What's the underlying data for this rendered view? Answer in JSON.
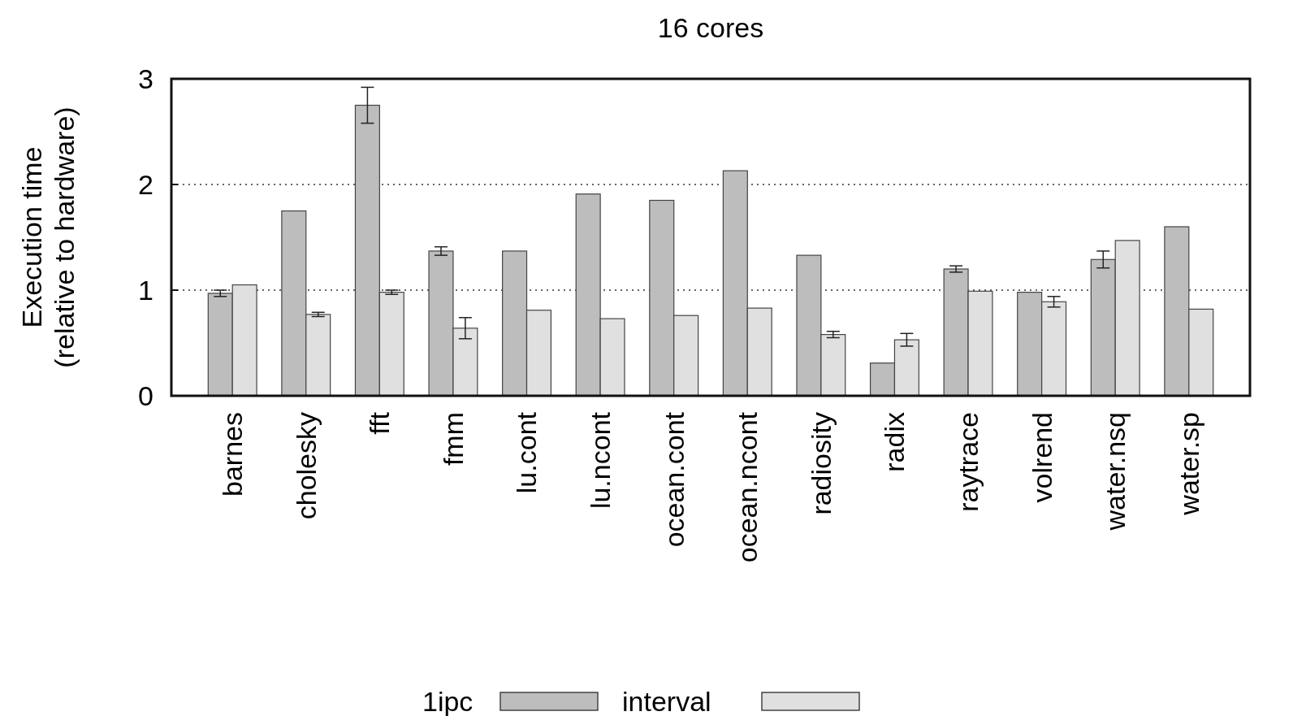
{
  "chart_data": {
    "type": "bar",
    "title": "16 cores",
    "ylabel": "Execution time\n(relative to hardware)",
    "categories": [
      "barnes",
      "cholesky",
      "fft",
      "fmm",
      "lu.cont",
      "lu.ncont",
      "ocean.cont",
      "ocean.ncont",
      "radiosity",
      "radix",
      "raytrace",
      "volrend",
      "water.nsq",
      "water.sp"
    ],
    "series": [
      {
        "name": "1ipc",
        "color": "#bdbdbd",
        "values": [
          0.97,
          1.75,
          2.75,
          1.37,
          1.37,
          1.91,
          1.85,
          2.13,
          1.33,
          0.31,
          1.2,
          0.98,
          1.29,
          1.6
        ],
        "errors": [
          0.03,
          null,
          0.17,
          0.04,
          null,
          null,
          null,
          null,
          null,
          null,
          0.03,
          null,
          0.08,
          null
        ]
      },
      {
        "name": "interval",
        "color": "#e0e0e0",
        "values": [
          1.05,
          0.77,
          0.98,
          0.64,
          0.81,
          0.73,
          0.76,
          0.83,
          0.58,
          0.53,
          0.99,
          0.89,
          1.47,
          0.82
        ],
        "errors": [
          null,
          0.02,
          0.02,
          0.1,
          null,
          null,
          null,
          null,
          0.03,
          0.06,
          null,
          0.05,
          null,
          null
        ]
      }
    ],
    "ylim": [
      0,
      3
    ],
    "yticks": [
      0,
      1,
      2,
      3
    ],
    "grid": "y",
    "legend": "bottom"
  }
}
